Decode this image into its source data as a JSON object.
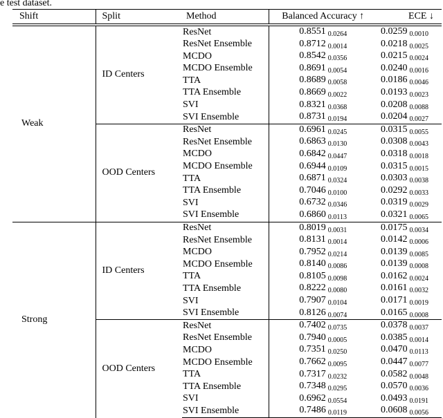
{
  "caption_fragment": "e test dataset.",
  "text_color": "#000000",
  "background_color": "#ffffff",
  "table": {
    "headers": {
      "shift": "Shift",
      "split": "Split",
      "method": "Method",
      "balanced_accuracy": "Balanced Accuracy ↑",
      "ece": "ECE ↓"
    },
    "sections": [
      {
        "shift": "Weak",
        "splits": [
          {
            "split": "ID Centers",
            "rows": [
              {
                "method": "ResNet",
                "ba": "0.8551",
                "ba_std": "0.0264",
                "ece": "0.0259",
                "ece_std": "0.0010"
              },
              {
                "method": "ResNet Ensemble",
                "ba": "0.8712",
                "ba_std": "0.0014",
                "ece": "0.0218",
                "ece_std": "0.0025"
              },
              {
                "method": "MCDO",
                "ba": "0.8542",
                "ba_std": "0.0356",
                "ece": "0.0215",
                "ece_std": "0.0024"
              },
              {
                "method": "MCDO Ensemble",
                "ba": "0.8691",
                "ba_std": "0.0054",
                "ece": "0.0240",
                "ece_std": "0.0016"
              },
              {
                "method": "TTA",
                "ba": "0.8689",
                "ba_std": "0.0058",
                "ece": "0.0186",
                "ece_std": "0.0046"
              },
              {
                "method": "TTA Ensemble",
                "ba": "0.8669",
                "ba_std": "0.0022",
                "ece": "0.0193",
                "ece_std": "0.0023"
              },
              {
                "method": "SVI",
                "ba": "0.8321",
                "ba_std": "0.0368",
                "ece": "0.0208",
                "ece_std": "0.0088"
              },
              {
                "method": "SVI Ensemble",
                "ba": "0.8731",
                "ba_std": "0.0194",
                "ece": "0.0204",
                "ece_std": "0.0027"
              }
            ]
          },
          {
            "split": "OOD Centers",
            "rows": [
              {
                "method": "ResNet",
                "ba": "0.6961",
                "ba_std": "0.0245",
                "ece": "0.0315",
                "ece_std": "0.0055"
              },
              {
                "method": "ResNet Ensemble",
                "ba": "0.6863",
                "ba_std": "0.0130",
                "ece": "0.0308",
                "ece_std": "0.0043"
              },
              {
                "method": "MCDO",
                "ba": "0.6842",
                "ba_std": "0.0447",
                "ece": "0.0318",
                "ece_std": "0.0018"
              },
              {
                "method": "MCDO Ensemble",
                "ba": "0.6944",
                "ba_std": "0.0109",
                "ece": "0.0315",
                "ece_std": "0.0015"
              },
              {
                "method": "TTA",
                "ba": "0.6871",
                "ba_std": "0.0324",
                "ece": "0.0303",
                "ece_std": "0.0038"
              },
              {
                "method": "TTA Ensemble",
                "ba": "0.7046",
                "ba_std": "0.0100",
                "ece": "0.0292",
                "ece_std": "0.0033"
              },
              {
                "method": "SVI",
                "ba": "0.6732",
                "ba_std": "0.0346",
                "ece": "0.0319",
                "ece_std": "0.0029"
              },
              {
                "method": "SVI Ensemble",
                "ba": "0.6860",
                "ba_std": "0.0113",
                "ece": "0.0321",
                "ece_std": "0.0065"
              }
            ]
          }
        ]
      },
      {
        "shift": "Strong",
        "splits": [
          {
            "split": "ID Centers",
            "rows": [
              {
                "method": "ResNet",
                "ba": "0.8019",
                "ba_std": "0.0031",
                "ece": "0.0175",
                "ece_std": "0.0034"
              },
              {
                "method": "ResNet Ensemble",
                "ba": "0.8131",
                "ba_std": "0.0014",
                "ece": "0.0142",
                "ece_std": "0.0006"
              },
              {
                "method": "MCDO",
                "ba": "0.7952",
                "ba_std": "0.0214",
                "ece": "0.0139",
                "ece_std": "0.0085"
              },
              {
                "method": "MCDO Ensemble",
                "ba": "0.8140",
                "ba_std": "0.0086",
                "ece": "0.0139",
                "ece_std": "0.0008"
              },
              {
                "method": "TTA",
                "ba": "0.8105",
                "ba_std": "0.0098",
                "ece": "0.0162",
                "ece_std": "0.0024"
              },
              {
                "method": "TTA Ensemble",
                "ba": "0.8222",
                "ba_std": "0.0080",
                "ece": "0.0161",
                "ece_std": "0.0032"
              },
              {
                "method": "SVI",
                "ba": "0.7907",
                "ba_std": "0.0104",
                "ece": "0.0171",
                "ece_std": "0.0019"
              },
              {
                "method": "SVI Ensemble",
                "ba": "0.8126",
                "ba_std": "0.0074",
                "ece": "0.0165",
                "ece_std": "0.0008"
              }
            ]
          },
          {
            "split": "OOD Centers",
            "rows": [
              {
                "method": "ResNet",
                "ba": "0.7402",
                "ba_std": "0.0735",
                "ece": "0.0378",
                "ece_std": "0.0037"
              },
              {
                "method": "ResNet Ensemble",
                "ba": "0.7940",
                "ba_std": "0.0005",
                "ece": "0.0385",
                "ece_std": "0.0014"
              },
              {
                "method": "MCDO",
                "ba": "0.7351",
                "ba_std": "0.0250",
                "ece": "0.0470",
                "ece_std": "0.0113"
              },
              {
                "method": "MCDO Ensemble",
                "ba": "0.7662",
                "ba_std": "0.0095",
                "ece": "0.0447",
                "ece_std": "0.0077"
              },
              {
                "method": "TTA",
                "ba": "0.7317",
                "ba_std": "0.0232",
                "ece": "0.0582",
                "ece_std": "0.0048"
              },
              {
                "method": "TTA Ensemble",
                "ba": "0.7348",
                "ba_std": "0.0295",
                "ece": "0.0570",
                "ece_std": "0.0036"
              },
              {
                "method": "SVI",
                "ba": "0.6962",
                "ba_std": "0.0554",
                "ece": "0.0493",
                "ece_std": "0.0191"
              },
              {
                "method": "SVI Ensemble",
                "ba": "0.7486",
                "ba_std": "0.0119",
                "ece": "0.0608",
                "ece_std": "0.0056"
              }
            ]
          }
        ]
      }
    ]
  }
}
